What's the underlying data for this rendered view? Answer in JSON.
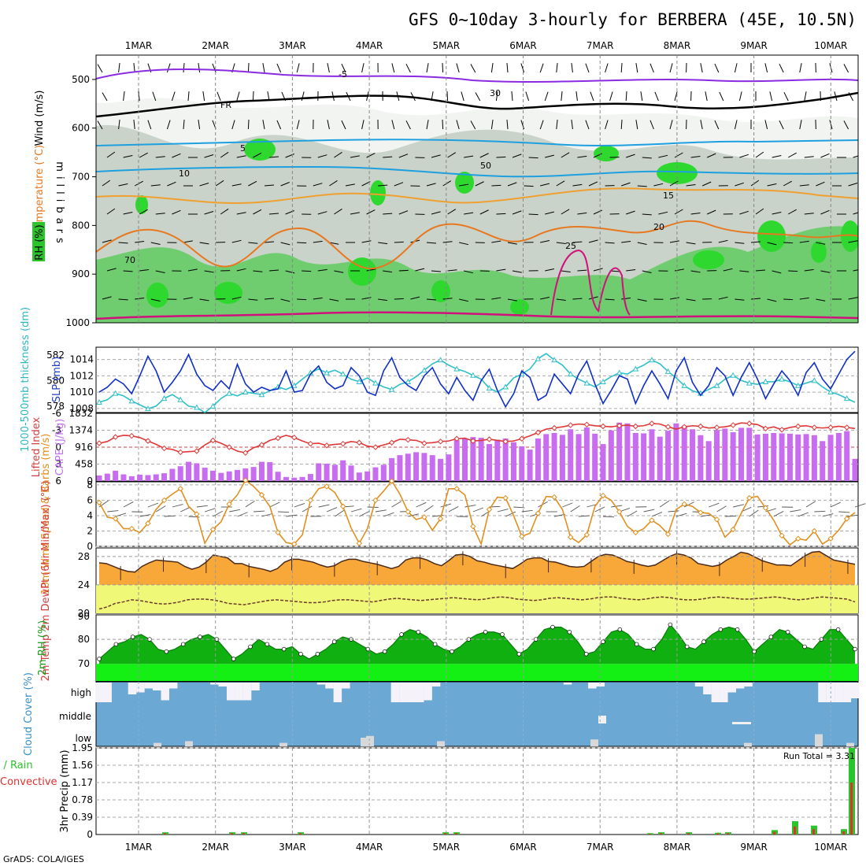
{
  "title": "GFS 0~10day 3-hourly for BERBERA (45E, 10.5N)",
  "footer": "GrADS: COLA/IGES",
  "chart_data": [
    {
      "panel": "upper-air",
      "type": "heatmap",
      "dates": [
        "1MAR",
        "2MAR",
        "3MAR",
        "4MAR",
        "5MAR",
        "6MAR",
        "7MAR",
        "8MAR",
        "9MAR",
        "10MAR"
      ],
      "ylabel": "millibars",
      "yticks": [
        500,
        600,
        700,
        800,
        900,
        1000
      ],
      "ylim": [
        450,
        1000
      ],
      "legend": {
        "rh": "RH (%)",
        "temp": "Temperature (°C)",
        "wind": "Wind (m/s)"
      },
      "contour_labels": [
        "-5",
        "FR",
        "5",
        "10",
        "15",
        "20",
        "25",
        "30",
        "50",
        "70"
      ]
    },
    {
      "panel": "thickness-slp",
      "type": "line",
      "ylabel_left": "1000-500mb thickness (dm)",
      "ylabel_right": "SLP (mb)",
      "yticks_left": [
        578,
        580,
        582
      ],
      "yticks_right": [
        1008,
        1010,
        1012,
        1014
      ],
      "ylim_slp": [
        1007.5,
        1015.5
      ],
      "slp": [
        1010.0,
        1010.6,
        1011.6,
        1011.0,
        1009.8,
        1012.0,
        1014.4,
        1012.6,
        1010.0,
        1011.2,
        1012.6,
        1014.6,
        1012.2,
        1010.8,
        1010.2,
        1011.4,
        1010.4,
        1013.4,
        1011.0,
        1010.0,
        1010.6,
        1010.2,
        1010.4,
        1012.6,
        1010.0,
        1010.2,
        1012.2,
        1013.2,
        1011.2,
        1010.4,
        1010.8,
        1013.0,
        1012.0,
        1010.0,
        1009.6,
        1012.6,
        1014.2,
        1011.8,
        1010.8,
        1010.2,
        1012.0,
        1013.0,
        1011.0,
        1009.8,
        1011.8,
        1010.2,
        1009.0,
        1011.4,
        1012.8,
        1010.2,
        1008.2,
        1009.8,
        1012.6,
        1011.8,
        1009.0,
        1009.6,
        1012.2,
        1011.0,
        1009.8,
        1012.2,
        1013.8,
        1011.0,
        1008.6,
        1010.2,
        1012.0,
        1011.6,
        1008.6,
        1010.8,
        1012.6,
        1011.0,
        1009.2,
        1012.6,
        1014.2,
        1011.2,
        1009.6,
        1010.8,
        1013.0,
        1012.0,
        1009.6,
        1011.8,
        1013.6,
        1011.6,
        1009.2,
        1011.0,
        1012.6,
        1011.4,
        1009.6,
        1012.4,
        1013.6,
        1011.6,
        1010.4,
        1012.2,
        1014.0,
        1015.0
      ],
      "ylim_thickness": [
        577.5,
        582.6
      ],
      "thickness": [
        578.3,
        578.5,
        579.0,
        578.8,
        578.4,
        578.1,
        577.8,
        578.0,
        578.6,
        578.9,
        578.5,
        578.0,
        577.9,
        577.5,
        578.0,
        578.6,
        579.0,
        578.8,
        579.1,
        579.0,
        578.9,
        579.2,
        579.5,
        579.3,
        579.6,
        580.1,
        580.6,
        580.9,
        580.6,
        580.8,
        580.5,
        580.1,
        579.9,
        580.2,
        579.8,
        579.5,
        579.3,
        579.7,
        579.9,
        580.3,
        580.8,
        581.3,
        581.6,
        581.2,
        580.9,
        580.7,
        580.4,
        580.1,
        579.4,
        579.1,
        579.5,
        580.2,
        580.5,
        580.9,
        581.7,
        582.1,
        581.6,
        581.2,
        580.5,
        580.1,
        579.8,
        579.5,
        579.9,
        580.3,
        580.6,
        580.5,
        580.9,
        581.2,
        581.6,
        581.3,
        580.7,
        580.2,
        579.6,
        579.2,
        579.0,
        579.3,
        579.6,
        580.1,
        580.4,
        580.0,
        579.8,
        579.7,
        579.9,
        579.9,
        580.1,
        579.9,
        579.6,
        579.8,
        580.0,
        579.5,
        579.1,
        578.9,
        578.6,
        578.3
      ]
    },
    {
      "panel": "li-cape",
      "type": "bar",
      "ylabel_left": "Lifted Index",
      "ylabel_right": "CAPE (J/kg)",
      "yticks_li": [
        -6,
        -3,
        0,
        3,
        6
      ],
      "yticks_cape": [
        0,
        458,
        916,
        1374,
        1832
      ],
      "cape": [
        150,
        200,
        280,
        180,
        130,
        170,
        160,
        180,
        210,
        330,
        400,
        520,
        480,
        360,
        280,
        220,
        260,
        300,
        340,
        380,
        520,
        510,
        250,
        110,
        90,
        110,
        190,
        480,
        470,
        440,
        560,
        420,
        230,
        260,
        370,
        440,
        620,
        700,
        740,
        780,
        760,
        700,
        600,
        720,
        1110,
        1150,
        1190,
        1170,
        1000,
        1120,
        1150,
        1050,
        940,
        850,
        1150,
        1270,
        1300,
        1250,
        1400,
        1270,
        1450,
        1280,
        1000,
        1370,
        1580,
        1560,
        1300,
        1290,
        1400,
        1200,
        1360,
        1560,
        1500,
        1400,
        1240,
        1080,
        1380,
        1420,
        1320,
        1440,
        1440,
        1260,
        1280,
        1300,
        1290,
        1280,
        1260,
        1270,
        1240,
        1080,
        1250,
        1300,
        1350,
        600
      ],
      "lifted_index": [
        -0.7,
        -1.0,
        -1.8,
        -2.1,
        -2.0,
        -1.7,
        -1.1,
        -0.5,
        0.2,
        0.4,
        0.9,
        0.8,
        0.7,
        -0.4,
        -1.2,
        -0.7,
        0.0,
        0.7,
        1.0,
        0.1,
        -0.4,
        -1.2,
        -1.6,
        -2.1,
        -1.7,
        -1.1,
        -0.6,
        -0.7,
        -0.3,
        -0.5,
        -0.6,
        -1.0,
        -0.8,
        -0.2,
        0.0,
        -0.4,
        -0.8,
        -1.4,
        -1.3,
        -1.2,
        -0.7,
        -0.8,
        -1.0,
        -1.1,
        -1.5,
        -1.6,
        -1.1,
        -1.2,
        -1.4,
        -1.2,
        -1.0,
        -1.1,
        -1.5,
        -2.0,
        -2.6,
        -3.2,
        -3.4,
        -3.6,
        -3.9,
        -4.1,
        -4.0,
        -3.8,
        -3.7,
        -3.6,
        -3.8,
        -3.9,
        -3.7,
        -3.8,
        -4.2,
        -4.1,
        -3.6,
        -3.2,
        -3.6,
        -3.8,
        -3.7,
        -3.4,
        -3.5,
        -3.6,
        -3.9,
        -4.3,
        -4.2,
        -4.0,
        -3.3,
        -3.6,
        -3.1,
        -3.5,
        -3.7,
        -3.8,
        -3.5,
        -3.4,
        -3.5,
        -3.7,
        -3.5,
        -3.3
      ]
    },
    {
      "panel": "wind10m",
      "type": "line",
      "ylabel": "10m Wind Speed & Barbs (m/s)",
      "yticks": [
        0,
        2,
        4,
        6,
        8
      ],
      "ylim": [
        0,
        8.4
      ],
      "speed": [
        5.7,
        3.8,
        3.6,
        2.3,
        2.3,
        1.8,
        3.0,
        4.8,
        6.0,
        6.8,
        7.5,
        5.2,
        4.2,
        0.4,
        2.2,
        3.2,
        5.5,
        6.7,
        8.6,
        7.8,
        6.7,
        5.2,
        1.8,
        0.5,
        0.3,
        1.5,
        6.0,
        7.5,
        7.8,
        7.0,
        5.2,
        2.4,
        0.4,
        2.3,
        6.0,
        7.2,
        8.5,
        6.8,
        4.5,
        3.5,
        3.8,
        2.1,
        3.6,
        7.5,
        7.5,
        6.7,
        2.6,
        0.3,
        4.8,
        6.4,
        6.3,
        4.0,
        1.3,
        1.7,
        4.3,
        6.5,
        6.4,
        4.8,
        1.2,
        0.5,
        1.5,
        5.2,
        6.6,
        6.0,
        4.5,
        2.6,
        1.8,
        2.3,
        3.4,
        2.7,
        1.6,
        4.8,
        5.5,
        5.2,
        4.4,
        4.3,
        3.5,
        1.2,
        2.2,
        4.3,
        6.3,
        6.5,
        5.0,
        3.4,
        1.4,
        0.2,
        1.0,
        0.8,
        2.0,
        0.3,
        1.0,
        2.1,
        3.6,
        4.4
      ]
    },
    {
      "panel": "temp2m",
      "type": "area",
      "ylabel": "2m Temp 2m DewPt (6hr Min/Max) (°C)",
      "yticks": [
        20,
        24,
        28
      ],
      "ylim": [
        20,
        29.2
      ],
      "temp": [
        27.1,
        27.0,
        26.6,
        26.2,
        25.9,
        25.8,
        26.6,
        27.1,
        27.5,
        27.4,
        27.3,
        27.2,
        26.6,
        26.2,
        26.5,
        27.2,
        28.2,
        28.0,
        27.8,
        27.0,
        27.0,
        26.6,
        26.4,
        26.2,
        25.9,
        26.3,
        27.2,
        27.6,
        27.6,
        27.4,
        27.2,
        26.8,
        26.5,
        26.7,
        27.3,
        27.6,
        27.6,
        27.3,
        27.1,
        26.9,
        26.6,
        26.3,
        26.6,
        27.5,
        27.8,
        27.8,
        27.5,
        27.0,
        26.7,
        27.4,
        28.2,
        28.3,
        28.0,
        27.4,
        27.2,
        26.9,
        26.7,
        26.5,
        26.3,
        26.9,
        27.6,
        27.8,
        27.8,
        27.3,
        27.2,
        26.9,
        26.6,
        26.5,
        26.6,
        27.3,
        28.0,
        28.3,
        28.2,
        27.8,
        27.3,
        27.1,
        26.8,
        26.6,
        26.8,
        27.4,
        28.0,
        28.4,
        28.2,
        27.8,
        27.0,
        26.8,
        26.6,
        26.8,
        27.5,
        28.0,
        28.6,
        28.4,
        27.9,
        27.4,
        27.1,
        26.8,
        26.8,
        26.7,
        27.4,
        28.1,
        28.6,
        28.7,
        28.1,
        27.5,
        27.3,
        27.1,
        26.9
      ],
      "dewpt": [
        20.6,
        20.9,
        21.4,
        21.6,
        21.9,
        21.8,
        21.6,
        21.4,
        21.3,
        21.4,
        21.6,
        21.9,
        22.0,
        22.0,
        21.9,
        21.7,
        21.4,
        21.3,
        21.2,
        21.4,
        21.6,
        21.8,
        21.9,
        21.8,
        21.7,
        21.6,
        21.5,
        21.5,
        21.6,
        21.8,
        21.9,
        21.9,
        21.8,
        21.7,
        21.6,
        21.8,
        22.0,
        22.1,
        22.0,
        21.9,
        21.8,
        21.9,
        22.0,
        22.1,
        22.2,
        22.1,
        22.0,
        21.9,
        22.0,
        22.2,
        22.3,
        22.2,
        22.0,
        21.9,
        21.8,
        21.9,
        22.1,
        22.2,
        22.1,
        22.0,
        21.9,
        22.0,
        22.2,
        22.3,
        22.3,
        22.1,
        22.0,
        21.9,
        22.0,
        22.2,
        22.3,
        22.2,
        22.0,
        21.9,
        21.9,
        22.0,
        22.2,
        22.3,
        22.2,
        22.1,
        22.0,
        22.0,
        22.1,
        22.2,
        22.3,
        22.2,
        22.0,
        21.9,
        22.0,
        22.2,
        22.3,
        22.2,
        22.1,
        22.0,
        21.6
      ]
    },
    {
      "panel": "rh2m",
      "type": "area",
      "ylabel": "2m RH (%)",
      "yticks": [
        70,
        80,
        90
      ],
      "ylim": [
        63,
        90
      ],
      "rh": [
        72,
        75,
        78,
        79,
        81,
        82,
        80,
        76,
        75,
        76,
        78,
        80,
        81,
        82,
        80,
        76,
        72,
        74,
        77,
        80,
        78,
        76,
        76,
        77,
        74,
        72,
        74,
        76,
        79,
        81,
        80,
        78,
        76,
        74,
        75,
        78,
        82,
        84,
        83,
        81,
        78,
        76,
        75,
        77,
        80,
        82,
        83,
        83,
        82,
        78,
        74,
        76,
        80,
        84,
        85,
        85,
        83,
        79,
        74,
        75,
        79,
        83,
        84,
        82,
        78,
        76,
        76,
        80,
        86,
        82,
        77,
        76,
        79,
        82,
        84,
        85,
        84,
        80,
        75,
        78,
        81,
        84,
        83,
        80,
        77,
        76,
        80,
        84,
        84,
        80,
        76
      ]
    },
    {
      "panel": "cloud",
      "type": "bar",
      "ylabel": "Cloud Cover (%)",
      "levels": [
        "high",
        "middle",
        "low"
      ]
    },
    {
      "panel": "precip",
      "type": "bar",
      "ylabel": "3hr Precip (mm)",
      "legend_total": "Total / Rain",
      "legend_conv": "Convective",
      "yticks": [
        0,
        0.39,
        0.78,
        1.17,
        1.56,
        1.95
      ],
      "ylim": [
        0,
        1.95
      ],
      "run_total": "Run Total = 3.31"
    }
  ]
}
